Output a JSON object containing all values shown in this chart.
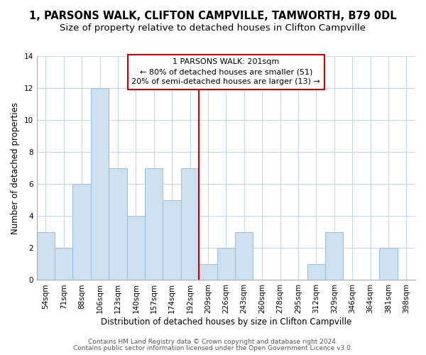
{
  "title": "1, PARSONS WALK, CLIFTON CAMPVILLE, TAMWORTH, B79 0DL",
  "subtitle": "Size of property relative to detached houses in Clifton Campville",
  "xlabel": "Distribution of detached houses by size in Clifton Campville",
  "ylabel": "Number of detached properties",
  "bin_labels": [
    "54sqm",
    "71sqm",
    "88sqm",
    "106sqm",
    "123sqm",
    "140sqm",
    "157sqm",
    "174sqm",
    "192sqm",
    "209sqm",
    "226sqm",
    "243sqm",
    "260sqm",
    "278sqm",
    "295sqm",
    "312sqm",
    "329sqm",
    "346sqm",
    "364sqm",
    "381sqm",
    "398sqm"
  ],
  "bar_heights": [
    3,
    2,
    6,
    12,
    7,
    4,
    7,
    5,
    7,
    1,
    2,
    3,
    0,
    0,
    0,
    1,
    3,
    0,
    0,
    2,
    0
  ],
  "bar_color": "#cce0f0",
  "bar_edge_color": "#9bbfda",
  "vline_color": "#cc0000",
  "vline_x": 8.5,
  "ylim": [
    0,
    14
  ],
  "yticks": [
    0,
    2,
    4,
    6,
    8,
    10,
    12,
    14
  ],
  "annotation_title": "1 PARSONS WALK: 201sqm",
  "annotation_line1": "← 80% of detached houses are smaller (51)",
  "annotation_line2": "20% of semi-detached houses are larger (13) →",
  "footer_line1": "Contains HM Land Registry data © Crown copyright and database right 2024.",
  "footer_line2": "Contains public sector information licensed under the Open Government Licence v3.0.",
  "background_color": "#ffffff",
  "grid_color": "#c8d4e8",
  "title_fontsize": 10.5,
  "subtitle_fontsize": 9.5,
  "axis_label_fontsize": 8.5,
  "tick_fontsize": 7.5,
  "annotation_fontsize": 8.0,
  "footer_fontsize": 6.5
}
